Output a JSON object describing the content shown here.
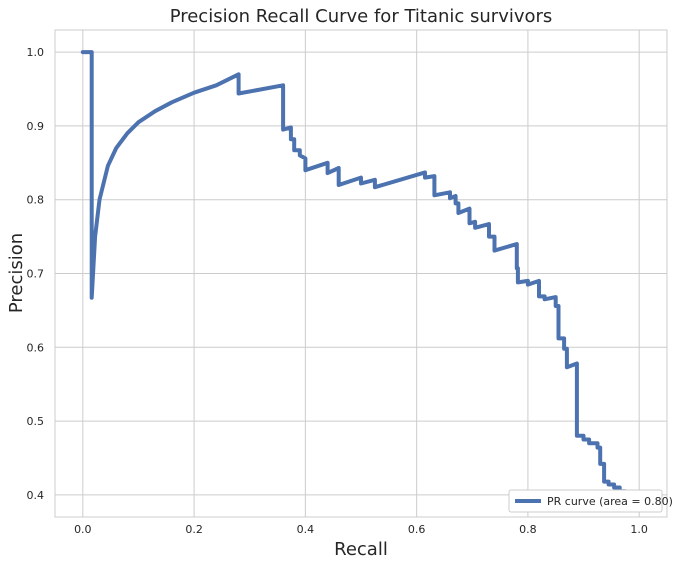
{
  "chart_data": {
    "type": "line",
    "title": "Precision Recall Curve for Titanic survivors",
    "xlabel": "Recall",
    "ylabel": "Precision",
    "xlim": [
      -0.05,
      1.05
    ],
    "ylim": [
      0.37,
      1.03
    ],
    "xticks": [
      "0.0",
      "0.2",
      "0.4",
      "0.6",
      "0.8",
      "1.0"
    ],
    "yticks": [
      "0.4",
      "0.5",
      "0.6",
      "0.7",
      "0.8",
      "0.9",
      "1.0"
    ],
    "grid": true,
    "legend_position": "lower right",
    "series": [
      {
        "name": "PR curve (area = 0.80)",
        "color": "#4c72b0",
        "points": [
          [
            0.0,
            1.0
          ],
          [
            0.016,
            1.0
          ],
          [
            0.016,
            0.667
          ],
          [
            0.022,
            0.75
          ],
          [
            0.03,
            0.8
          ],
          [
            0.045,
            0.846
          ],
          [
            0.06,
            0.87
          ],
          [
            0.08,
            0.89
          ],
          [
            0.1,
            0.905
          ],
          [
            0.13,
            0.92
          ],
          [
            0.16,
            0.932
          ],
          [
            0.2,
            0.945
          ],
          [
            0.24,
            0.955
          ],
          [
            0.28,
            0.97
          ],
          [
            0.28,
            0.944
          ],
          [
            0.36,
            0.955
          ],
          [
            0.36,
            0.895
          ],
          [
            0.374,
            0.898
          ],
          [
            0.374,
            0.882
          ],
          [
            0.38,
            0.882
          ],
          [
            0.38,
            0.867
          ],
          [
            0.39,
            0.867
          ],
          [
            0.39,
            0.86
          ],
          [
            0.4,
            0.856
          ],
          [
            0.4,
            0.84
          ],
          [
            0.44,
            0.85
          ],
          [
            0.44,
            0.836
          ],
          [
            0.46,
            0.843
          ],
          [
            0.46,
            0.82
          ],
          [
            0.5,
            0.83
          ],
          [
            0.5,
            0.822
          ],
          [
            0.525,
            0.827
          ],
          [
            0.525,
            0.817
          ],
          [
            0.615,
            0.837
          ],
          [
            0.615,
            0.83
          ],
          [
            0.632,
            0.832
          ],
          [
            0.632,
            0.806
          ],
          [
            0.66,
            0.81
          ],
          [
            0.66,
            0.802
          ],
          [
            0.67,
            0.805
          ],
          [
            0.67,
            0.795
          ],
          [
            0.675,
            0.795
          ],
          [
            0.675,
            0.782
          ],
          [
            0.695,
            0.788
          ],
          [
            0.695,
            0.768
          ],
          [
            0.705,
            0.77
          ],
          [
            0.705,
            0.762
          ],
          [
            0.73,
            0.767
          ],
          [
            0.73,
            0.75
          ],
          [
            0.74,
            0.75
          ],
          [
            0.74,
            0.731
          ],
          [
            0.78,
            0.74
          ],
          [
            0.78,
            0.707
          ],
          [
            0.782,
            0.707
          ],
          [
            0.782,
            0.688
          ],
          [
            0.8,
            0.69
          ],
          [
            0.8,
            0.685
          ],
          [
            0.82,
            0.69
          ],
          [
            0.82,
            0.669
          ],
          [
            0.83,
            0.669
          ],
          [
            0.83,
            0.665
          ],
          [
            0.85,
            0.668
          ],
          [
            0.85,
            0.656
          ],
          [
            0.855,
            0.656
          ],
          [
            0.855,
            0.612
          ],
          [
            0.865,
            0.612
          ],
          [
            0.865,
            0.598
          ],
          [
            0.87,
            0.598
          ],
          [
            0.87,
            0.573
          ],
          [
            0.888,
            0.578
          ],
          [
            0.888,
            0.48
          ],
          [
            0.9,
            0.48
          ],
          [
            0.9,
            0.475
          ],
          [
            0.91,
            0.475
          ],
          [
            0.91,
            0.47
          ],
          [
            0.925,
            0.47
          ],
          [
            0.925,
            0.464
          ],
          [
            0.93,
            0.464
          ],
          [
            0.93,
            0.442
          ],
          [
            0.937,
            0.442
          ],
          [
            0.937,
            0.418
          ],
          [
            0.945,
            0.418
          ],
          [
            0.945,
            0.414
          ],
          [
            0.955,
            0.414
          ],
          [
            0.955,
            0.41
          ],
          [
            0.965,
            0.41
          ],
          [
            0.965,
            0.405
          ],
          [
            0.975,
            0.405
          ],
          [
            0.975,
            0.4
          ],
          [
            1.0,
            0.4
          ]
        ]
      }
    ]
  }
}
